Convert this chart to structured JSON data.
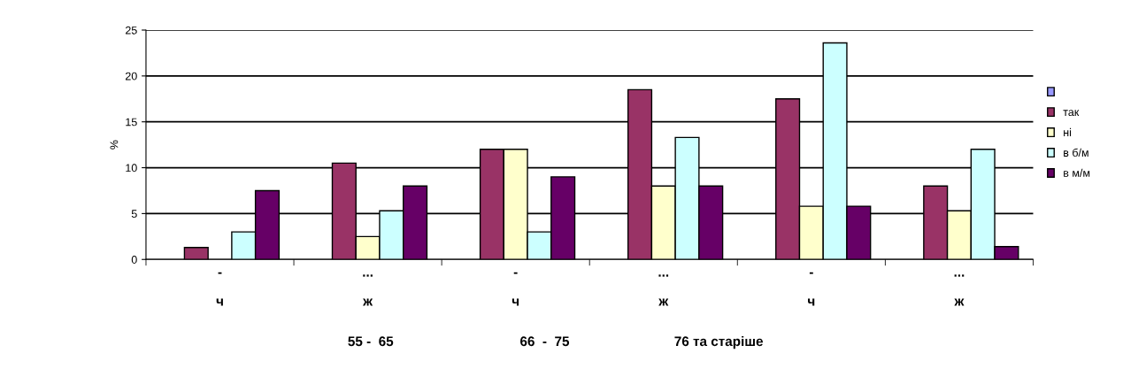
{
  "chart_data": {
    "type": "bar",
    "ylabel": "%",
    "categories": [
      "-\n\nч",
      "...\n\nж",
      "-\n\nч",
      "...\n\nж",
      "-\n\nч",
      "...\n\nж"
    ],
    "series": [
      {
        "color": "#9999ff",
        "values": [
          null,
          null,
          null,
          null,
          null,
          null
        ]
      },
      {
        "name": "так",
        "color": "#993366",
        "values": [
          1.3,
          10.5,
          12,
          18.5,
          17.5,
          8
        ]
      },
      {
        "name": "ні",
        "color": "#ffffcc",
        "values": [
          null,
          2.5,
          12,
          8,
          5.8,
          5.3
        ]
      },
      {
        "name": "в б/м",
        "color": "#ccffff",
        "values": [
          3,
          5.3,
          3,
          13.3,
          23.6,
          12
        ]
      },
      {
        "name": "в м/м",
        "color": "#660066",
        "values": [
          7.5,
          8,
          9,
          8,
          5.8,
          1.4
        ]
      }
    ],
    "ylim": [
      0,
      25
    ],
    "yticks": [
      0,
      5,
      10,
      15,
      20,
      25
    ],
    "grid": "y",
    "legend": "right",
    "annotations": [
      "55 -  65",
      "66  -  75",
      "76 та старіше"
    ]
  }
}
